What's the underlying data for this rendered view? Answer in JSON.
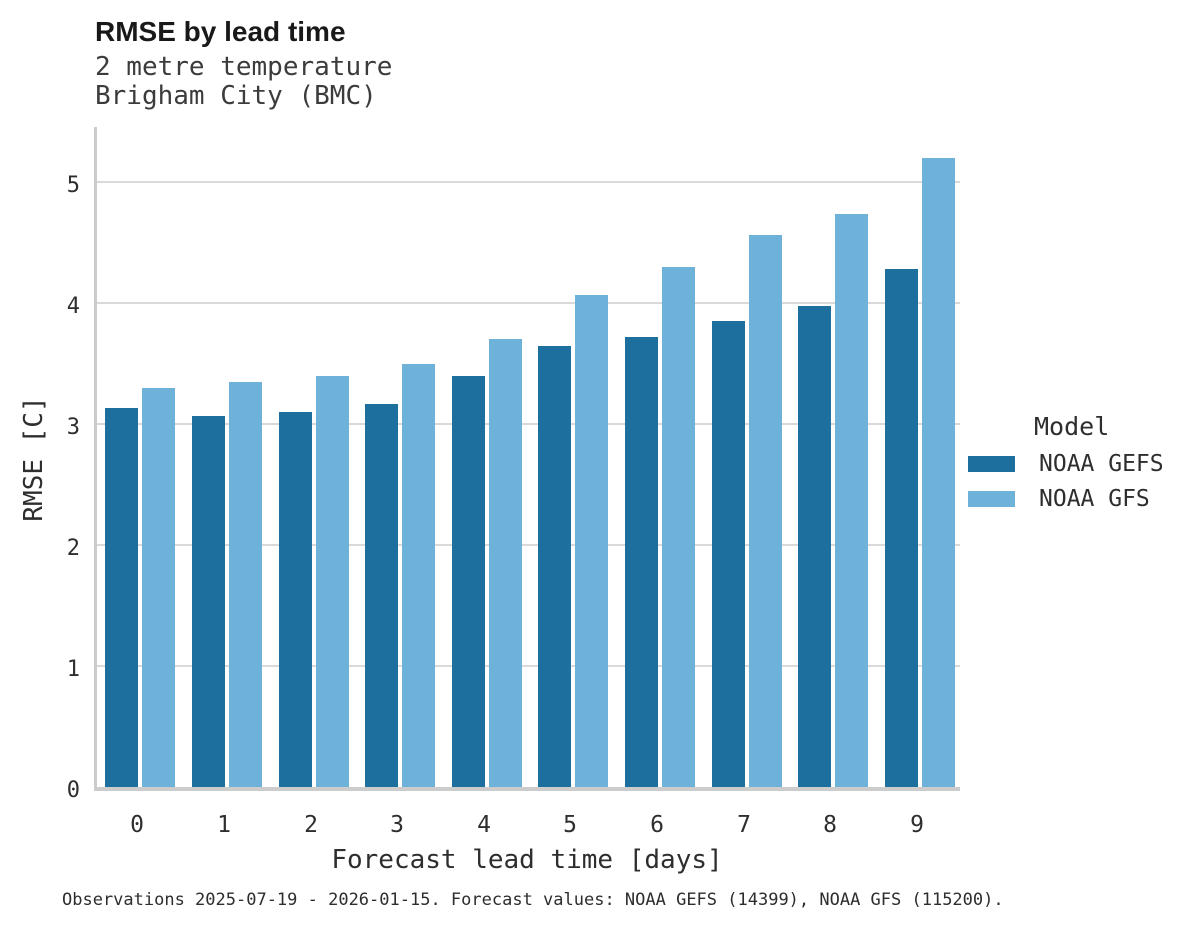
{
  "header": {
    "title": "RMSE by lead time",
    "subtitle_line1": "2 metre temperature",
    "subtitle_line2": "Brigham City (BMC)"
  },
  "chart_data": {
    "type": "bar",
    "title": "RMSE by lead time",
    "subtitle": [
      "2 metre temperature",
      "Brigham City (BMC)"
    ],
    "categories": [
      "0",
      "1",
      "2",
      "3",
      "4",
      "5",
      "6",
      "7",
      "8",
      "9"
    ],
    "series": [
      {
        "name": "NOAA GEFS",
        "color": "#1d6f9e",
        "values": [
          3.13,
          3.07,
          3.1,
          3.17,
          3.4,
          3.65,
          3.72,
          3.85,
          3.98,
          4.28
        ]
      },
      {
        "name": "NOAA GFS",
        "color": "#6fb2d9",
        "values": [
          3.3,
          3.35,
          3.4,
          3.5,
          3.7,
          4.07,
          4.3,
          4.56,
          4.74,
          5.2
        ]
      }
    ],
    "xlabel": "Forecast lead time [days]",
    "ylabel": "RMSE [C]",
    "ylim": [
      0,
      5.49
    ],
    "yticks": [
      0,
      1,
      2,
      3,
      4,
      5
    ],
    "grid": true,
    "legend_title": "Model",
    "legend_position": "right"
  },
  "legend": {
    "title": "Model",
    "items": [
      {
        "label": "NOAA GEFS",
        "color": "#1d6f9e"
      },
      {
        "label": "NOAA GFS",
        "color": "#6fb2d9"
      }
    ]
  },
  "footer": {
    "text": "Observations 2025-07-19 - 2026-01-15. Forecast values: NOAA GEFS (14399), NOAA GFS (115200)."
  },
  "colors": {
    "gridline": "#d9d9d9",
    "axis_line": "#cccccc",
    "title_text": "#191919",
    "subtitle_text": "#3c3c3c",
    "tick_text": "#2e2e2e"
  }
}
